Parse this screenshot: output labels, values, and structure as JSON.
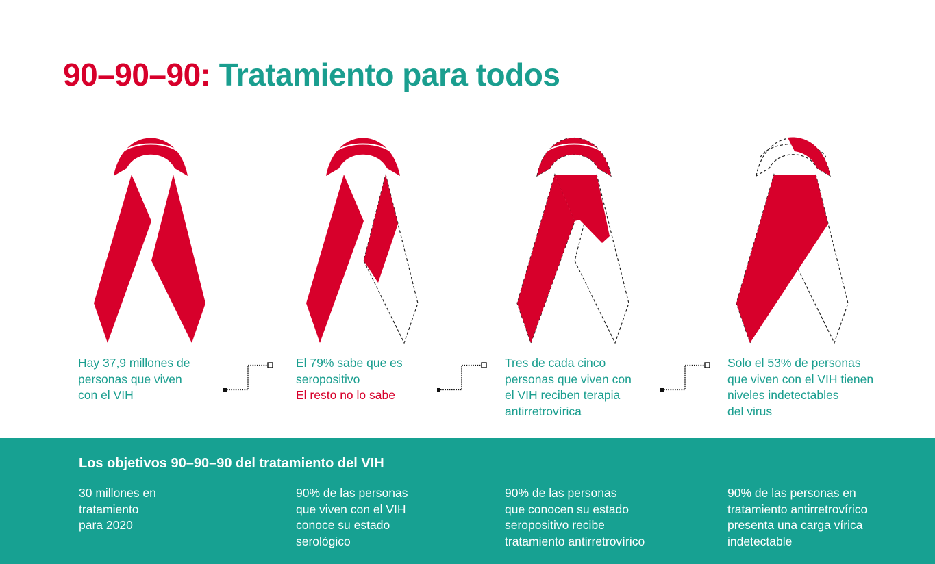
{
  "title": {
    "part1": "90–90–90:",
    "part2": "Tratamiento para todos"
  },
  "colors": {
    "red": "#d7002b",
    "teal": "#1a9e8f",
    "band": "#17a192",
    "white": "#ffffff"
  },
  "stats": [
    {
      "lines": [
        "Hay 37,9 millones de",
        "personas que viven",
        "con el VIH"
      ]
    },
    {
      "lines": [
        "El 79% sabe que es",
        "seropositivo"
      ],
      "highlight": "El resto no lo sabe"
    },
    {
      "lines": [
        "Tres de cada cinco",
        "personas que viven con",
        "el VIH reciben terapia",
        "antirretrovírica"
      ]
    },
    {
      "lines": [
        "Solo el 53% de personas",
        "que viven con el VIH tienen",
        "niveles indetectables",
        "del virus"
      ]
    }
  ],
  "ribbon_fill": [
    1.0,
    0.79,
    0.6,
    0.53
  ],
  "goals": {
    "title": "Los objetivos 90–90–90 del tratamiento del VIH",
    "items": [
      {
        "lines": [
          "30 millones en",
          "tratamiento",
          "para 2020"
        ]
      },
      {
        "lines": [
          "90% de las personas",
          "que viven con el VIH",
          "conoce su estado",
          "serológico"
        ]
      },
      {
        "lines": [
          "90% de las personas",
          "que conocen su estado",
          "seropositivo recibe",
          "tratamiento antirretrovírico"
        ]
      },
      {
        "lines": [
          "90% de las personas en",
          "tratamiento antirretrovírico",
          "presenta una carga vírica",
          "indetectable"
        ]
      }
    ]
  }
}
